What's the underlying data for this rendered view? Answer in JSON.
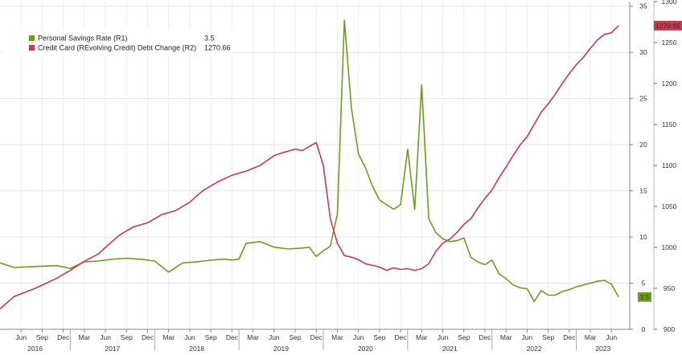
{
  "chart_data": {
    "type": "line",
    "legend": {
      "position": "top-left",
      "entries": [
        {
          "label": "Personal Savings Rate (R1)",
          "value": "3.5",
          "color": "#6a9e1f"
        },
        {
          "label": "Credit Card (REvolving Credit) Debt Change (R2)",
          "value": "1270.66",
          "color": "#c8384e"
        }
      ]
    },
    "x_axis": {
      "month_ticks": [
        "Jun",
        "Sep",
        "Dec",
        "Mar",
        "Jun",
        "Sep",
        "Dec",
        "Mar",
        "Jun",
        "Sep",
        "Dec",
        "Mar",
        "Jun",
        "Sep",
        "Dec",
        "Mar",
        "Jun",
        "Sep",
        "Dec",
        "Mar",
        "Jun",
        "Sep",
        "Dec",
        "Mar",
        "Jun",
        "Sep",
        "Dec",
        "Mar",
        "Jun"
      ],
      "year_labels": [
        "2016",
        "2017",
        "2018",
        "2019",
        "2020",
        "2021",
        "2022",
        "2023"
      ]
    },
    "axes": {
      "r1": {
        "ticks": [
          0,
          5,
          10,
          15,
          20,
          25,
          30,
          35
        ],
        "range": [
          0,
          35.5
        ]
      },
      "r2": {
        "ticks": [
          900,
          950,
          1000,
          1050,
          1100,
          1150,
          1200,
          1250,
          1300
        ],
        "range": [
          900,
          1300
        ]
      }
    },
    "last_value_labels": {
      "r1": "3.5",
      "r2": "1270.66"
    },
    "grid": true,
    "series": [
      {
        "name": "Personal Savings Rate (R1)",
        "axis": "r1",
        "color": "#6a9e1f",
        "x": [
          "2016-03",
          "2016-05",
          "2016-08",
          "2016-11",
          "2017-01",
          "2017-03",
          "2017-05",
          "2017-06",
          "2017-07",
          "2017-09",
          "2017-11",
          "2017-12",
          "2018-01",
          "2018-03",
          "2018-05",
          "2018-07",
          "2018-09",
          "2018-11",
          "2018-12",
          "2019-01",
          "2019-02",
          "2019-04",
          "2019-06",
          "2019-08",
          "2019-10",
          "2019-11",
          "2019-12",
          "2020-01",
          "2020-02",
          "2020-03",
          "2020-04",
          "2020-05",
          "2020-06",
          "2020-07",
          "2020-08",
          "2020-09",
          "2020-10",
          "2020-11",
          "2020-12",
          "2021-01",
          "2021-02",
          "2021-03",
          "2021-04",
          "2021-05",
          "2021-06",
          "2021-07",
          "2021-08",
          "2021-09",
          "2021-10",
          "2021-11",
          "2021-12",
          "2022-01",
          "2022-02",
          "2022-03",
          "2022-04",
          "2022-05",
          "2022-06",
          "2022-07",
          "2022-08",
          "2022-09",
          "2022-10",
          "2022-11",
          "2022-12",
          "2023-01",
          "2023-02",
          "2023-03",
          "2023-04",
          "2023-05",
          "2023-06",
          "2023-07"
        ],
        "values": [
          7.2,
          6.7,
          6.8,
          6.9,
          6.6,
          7.3,
          7.4,
          7.5,
          7.6,
          7.7,
          7.6,
          7.5,
          7.4,
          6.2,
          7.2,
          7.3,
          7.5,
          7.6,
          7.5,
          7.6,
          9.3,
          9.5,
          8.9,
          8.7,
          8.8,
          8.9,
          7.9,
          8.5,
          9.0,
          12.5,
          33.5,
          24.0,
          19.0,
          17.5,
          15.5,
          14.0,
          13.5,
          13.0,
          13.5,
          19.5,
          13.0,
          26.5,
          12.0,
          10.5,
          9.8,
          9.5,
          9.6,
          9.9,
          7.8,
          7.3,
          7.0,
          7.5,
          6.0,
          5.5,
          4.8,
          4.5,
          4.4,
          3.0,
          4.2,
          3.7,
          3.7,
          4.1,
          4.3,
          4.6,
          4.8,
          5.0,
          5.2,
          5.3,
          4.9,
          3.5
        ]
      },
      {
        "name": "Credit Card (REvolving Credit) Debt Change (R2)",
        "axis": "r2",
        "color": "#c8384e",
        "x": [
          "2016-03",
          "2016-05",
          "2016-08",
          "2016-11",
          "2017-01",
          "2017-03",
          "2017-05",
          "2017-06",
          "2017-08",
          "2017-10",
          "2017-12",
          "2018-02",
          "2018-04",
          "2018-06",
          "2018-07",
          "2018-08",
          "2018-10",
          "2018-12",
          "2019-02",
          "2019-04",
          "2019-06",
          "2019-07",
          "2019-09",
          "2019-10",
          "2019-12",
          "2020-01",
          "2020-02",
          "2020-03",
          "2020-04",
          "2020-05",
          "2020-06",
          "2020-07",
          "2020-08",
          "2020-09",
          "2020-10",
          "2020-11",
          "2020-12",
          "2021-01",
          "2021-02",
          "2021-03",
          "2021-04",
          "2021-05",
          "2021-06",
          "2021-07",
          "2021-08",
          "2021-09",
          "2021-10",
          "2021-11",
          "2021-12",
          "2022-01",
          "2022-02",
          "2022-03",
          "2022-04",
          "2022-05",
          "2022-06",
          "2022-07",
          "2022-08",
          "2022-09",
          "2022-10",
          "2022-11",
          "2022-12",
          "2023-01",
          "2023-02",
          "2023-03",
          "2023-04",
          "2023-05",
          "2023-06",
          "2023-07"
        ],
        "values": [
          925,
          940,
          950,
          962,
          972,
          983,
          992,
          1000,
          1015,
          1025,
          1030,
          1040,
          1045,
          1055,
          1063,
          1070,
          1080,
          1088,
          1093,
          1100,
          1112,
          1115,
          1120,
          1118,
          1128,
          1100,
          1035,
          1005,
          990,
          988,
          985,
          980,
          978,
          976,
          972,
          975,
          973,
          974,
          972,
          974,
          980,
          995,
          1005,
          1010,
          1018,
          1028,
          1035,
          1048,
          1060,
          1070,
          1085,
          1098,
          1112,
          1125,
          1135,
          1150,
          1165,
          1175,
          1187,
          1200,
          1212,
          1223,
          1232,
          1243,
          1253,
          1260,
          1262,
          1270.66
        ]
      }
    ]
  }
}
